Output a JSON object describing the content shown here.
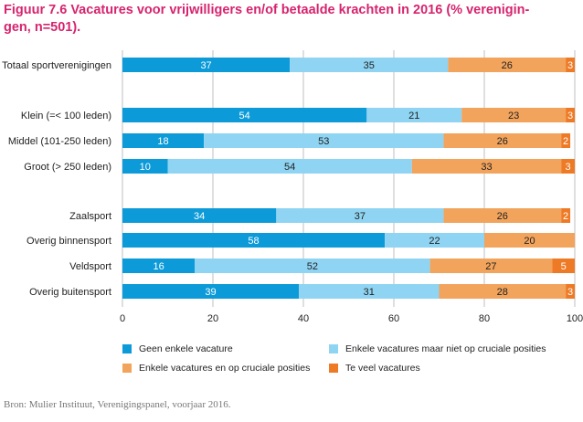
{
  "title_lines": [
    "Figuur 7.6 Vacatures voor vrijwilligers en/of betaalde krachten in 2016 (% verenigin-",
    "gen, n=501)."
  ],
  "source": "Bron: Mulier Instituut, Verenigingspanel, voorjaar 2016.",
  "colors": {
    "s0": "#0c9bd8",
    "s1": "#8fd4f2",
    "s2": "#f2a35c",
    "s3": "#ee7a26",
    "grid": "#bfbfbf",
    "text": "#222222",
    "bar_label": "#ffffff",
    "bar_label_dark": "#222222"
  },
  "chart_data": {
    "type": "bar",
    "orientation": "horizontal",
    "stacked": true,
    "xlim": [
      0,
      100
    ],
    "xticks": [
      0,
      20,
      40,
      60,
      80,
      100
    ],
    "grid": true,
    "categories": [
      "Totaal sportverenigingen",
      "Klein (=< 100 leden)",
      "Middel (101-250 leden)",
      "Groot (> 250 leden)",
      "Zaalsport",
      "Overig binnensport",
      "Veldsport",
      "Overig buitensport"
    ],
    "series": [
      {
        "name": "Geen enkele vacature",
        "values": [
          37,
          54,
          18,
          10,
          34,
          58,
          16,
          39
        ]
      },
      {
        "name": "Enkele vacatures maar niet op cruciale posities",
        "values": [
          35,
          21,
          53,
          54,
          37,
          22,
          52,
          31
        ]
      },
      {
        "name": "Enkele vacatures en op cruciale posities",
        "values": [
          26,
          23,
          26,
          33,
          26,
          20,
          27,
          28
        ]
      },
      {
        "name": "Te veel vacatures",
        "values": [
          3,
          3,
          2,
          3,
          2,
          0,
          5,
          3
        ]
      }
    ],
    "value_labels": [
      [
        "37",
        "35",
        "26",
        "3"
      ],
      [
        "54",
        "21",
        "23",
        "3"
      ],
      [
        "18",
        "53",
        "26",
        "2"
      ],
      [
        "10",
        "54",
        "33",
        "3"
      ],
      [
        "34",
        "37",
        "26",
        "2"
      ],
      [
        "58",
        "22",
        "20",
        ""
      ],
      [
        "16",
        "52",
        "27",
        "5"
      ],
      [
        "39",
        "31",
        "28",
        "3"
      ]
    ],
    "legend_position": "bottom"
  }
}
